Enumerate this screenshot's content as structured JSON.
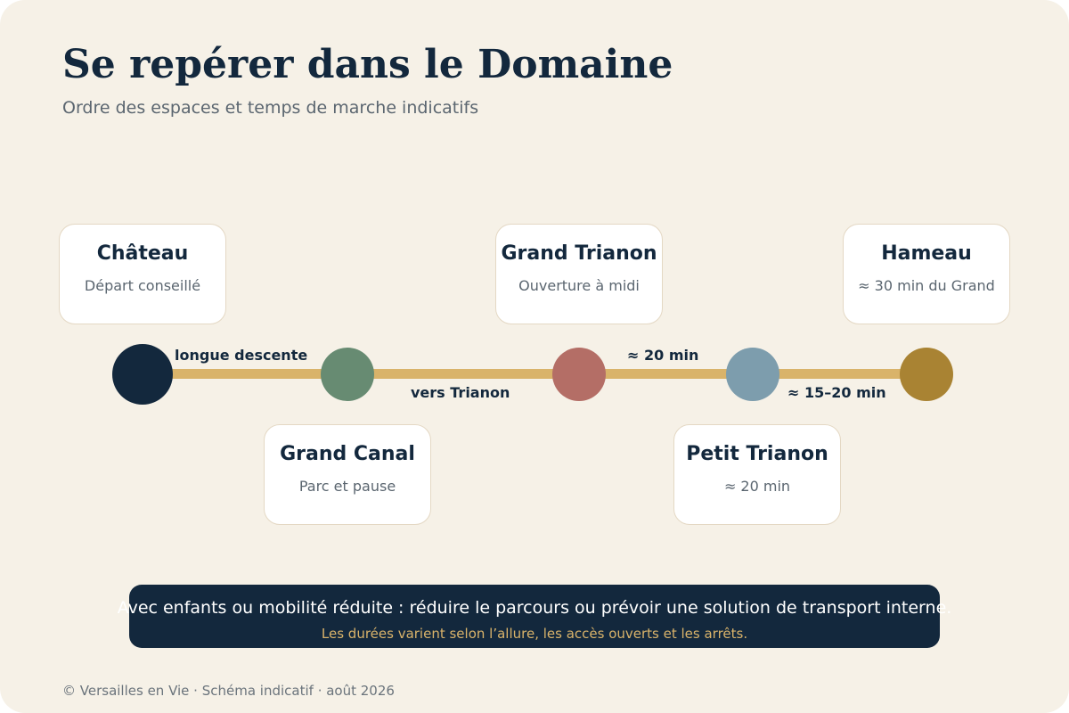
{
  "header": {
    "title": "Se repérer dans le Domaine",
    "subtitle": "Ordre des espaces et temps de marche indicatifs"
  },
  "route": {
    "track_color": "#d9b36a",
    "stops": [
      {
        "name": "Château",
        "note": "Départ conseillé",
        "color": "#13283d"
      },
      {
        "name": "Grand Canal",
        "note": "Parc et pause",
        "color": "#678b72"
      },
      {
        "name": "Grand Trianon",
        "note": "Ouverture à midi",
        "color": "#b46e66"
      },
      {
        "name": "Petit Trianon",
        "note": "≈ 20 min",
        "color": "#7d9dad"
      },
      {
        "name": "Hameau",
        "note": "≈ 30 min du Grand",
        "color": "#a98333"
      }
    ],
    "segments": [
      {
        "label": "longue descente"
      },
      {
        "label": "vers Trianon"
      },
      {
        "label": "≈ 20 min"
      },
      {
        "label": "≈ 15–20 min"
      }
    ]
  },
  "notice": {
    "main": "Avec enfants ou mobilité réduite : réduire le parcours ou prévoir une solution de transport interne.",
    "sub": "Les durées varient selon l’allure, les accès ouverts et les arrêts."
  },
  "footer": {
    "text": "© Versailles en Vie · Schéma indicatif · août 2026"
  }
}
